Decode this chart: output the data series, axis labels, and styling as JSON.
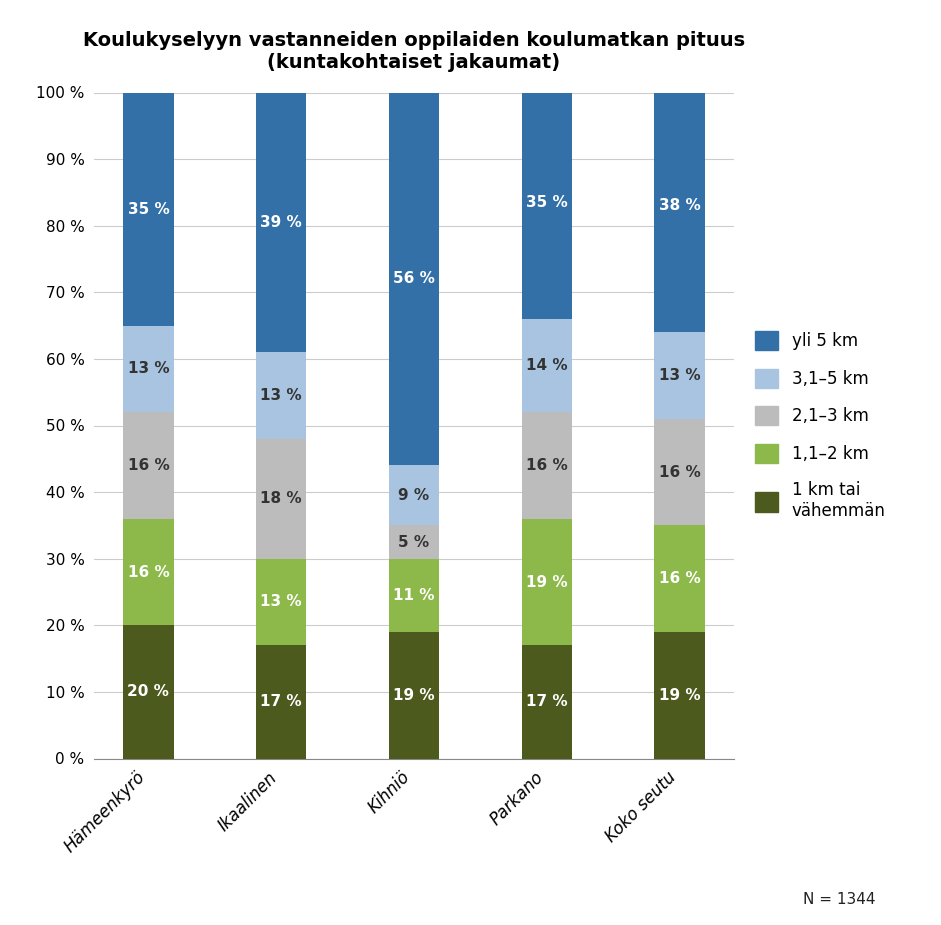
{
  "title_line1": "Koulukyselyyn vastanneiden oppilaiden koulumatkan pituus",
  "title_line2": "(kuntakohtaiset jakaumat)",
  "categories": [
    "Hämeenkyrö",
    "Ikaalinen",
    "Kihniö",
    "Parkano",
    "Koko seutu"
  ],
  "series_order": [
    "1 km tai vähemmän",
    "1,1–2 km",
    "2,1–3 km",
    "3,1–5 km",
    "yli 5 km"
  ],
  "series": {
    "1 km tai vähemmän": [
      20,
      17,
      19,
      17,
      19
    ],
    "1,1–2 km": [
      16,
      13,
      11,
      19,
      16
    ],
    "2,1–3 km": [
      16,
      18,
      5,
      16,
      16
    ],
    "3,1–5 km": [
      13,
      13,
      9,
      14,
      13
    ],
    "yli 5 km": [
      35,
      39,
      56,
      35,
      38
    ]
  },
  "colors": {
    "1 km tai vähemmän": "#4d5a1e",
    "1,1–2 km": "#8db84a",
    "2,1–3 km": "#bcbcbc",
    "3,1–5 km": "#a8c4e0",
    "yli 5 km": "#3470a8"
  },
  "text_colors": {
    "1 km tai vähemmän": "white",
    "1,1–2 km": "white",
    "2,1–3 km": "#333333",
    "3,1–5 km": "#333333",
    "yli 5 km": "white"
  },
  "legend_order": [
    "yli 5 km",
    "3,1–5 km",
    "2,1–3 km",
    "1,1–2 km",
    "1 km tai\nvähemmän"
  ],
  "legend_keys": [
    "yli 5 km",
    "3,1–5 km",
    "2,1–3 km",
    "1,1–2 km",
    "1 km tai vähemmän"
  ],
  "note": "N = 1344",
  "bar_width": 0.38,
  "ylim": [
    0,
    100
  ]
}
